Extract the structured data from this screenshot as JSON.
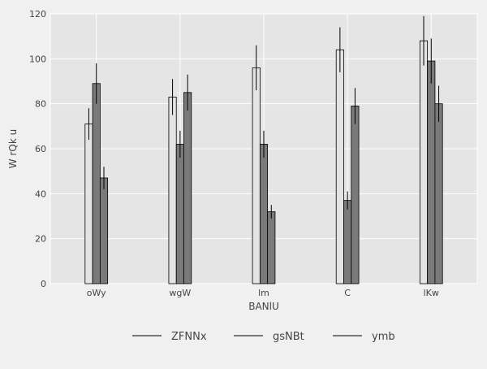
{
  "chart_data": {
    "type": "bar",
    "title": "",
    "xlabel": "BANlU",
    "ylabel": "W rQk u",
    "categories": [
      "oWy",
      "wgW",
      "lm",
      "C",
      "lKw"
    ],
    "series": [
      {
        "name": "ZFNNx",
        "values": [
          71,
          83,
          96,
          104,
          108
        ],
        "errors": [
          7,
          8,
          10,
          10,
          11
        ],
        "color": "#e4e4e4"
      },
      {
        "name": "gsNBt",
        "values": [
          89,
          62,
          62,
          37,
          99
        ],
        "errors": [
          9,
          6,
          6,
          4,
          10
        ],
        "color": "#7a7a7a"
      },
      {
        "name": "ymb",
        "values": [
          47,
          85,
          32,
          79,
          80
        ],
        "errors": [
          5,
          8,
          3,
          8,
          8
        ],
        "color": "#7a7a7a"
      }
    ],
    "ylim": [
      0,
      120
    ],
    "yticks": [
      0,
      20,
      40,
      60,
      80,
      100,
      120
    ],
    "grid": true,
    "legend_position": "bottom"
  }
}
